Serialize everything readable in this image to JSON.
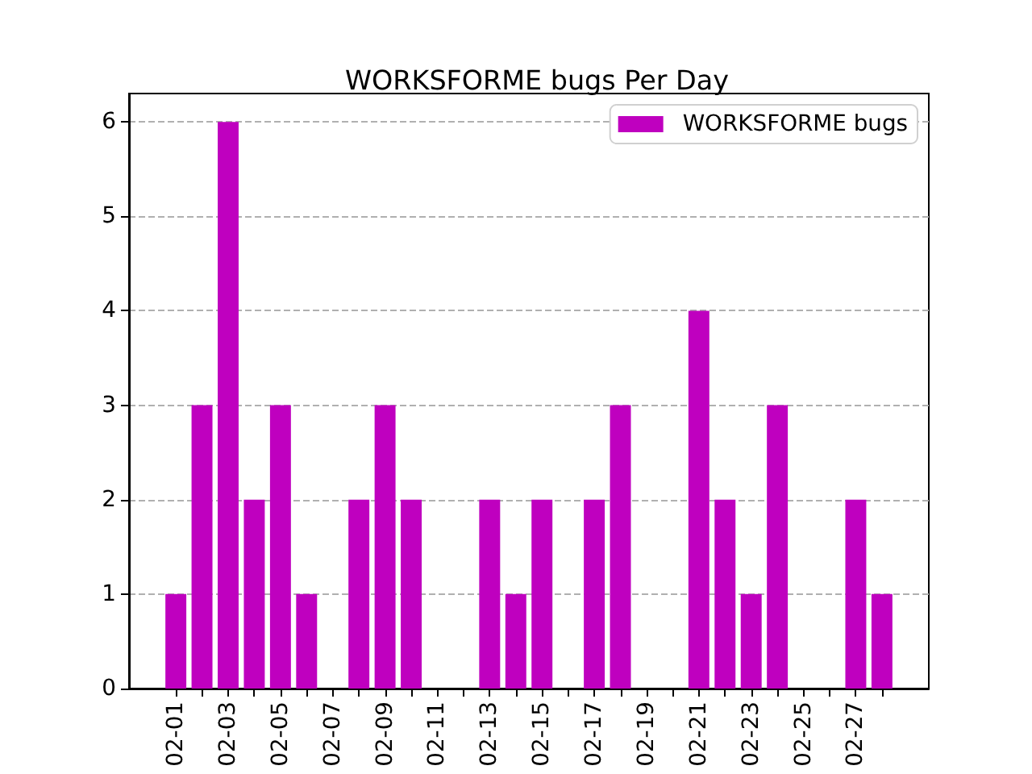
{
  "chart_data": {
    "type": "bar",
    "title": "WORKSFORME bugs Per Day",
    "x": [
      "--02-01",
      "--02-02",
      "--02-03",
      "--02-04",
      "--02-05",
      "--02-06",
      "--02-07",
      "--02-08",
      "--02-09",
      "--02-10",
      "--02-11",
      "--02-12",
      "--02-13",
      "--02-14",
      "--02-15",
      "--02-16",
      "--02-17",
      "--02-18",
      "--02-19",
      "--02-20",
      "--02-21",
      "--02-22",
      "--02-23",
      "--02-24",
      "--02-25",
      "--02-26",
      "--02-27",
      "--02-28"
    ],
    "series": [
      {
        "name": "WORKSFORME bugs",
        "color": "#bf00bf",
        "values": [
          1,
          3,
          6,
          2,
          3,
          1,
          0,
          2,
          3,
          2,
          0,
          0,
          2,
          1,
          2,
          0,
          2,
          3,
          0,
          0,
          4,
          2,
          1,
          3,
          0,
          0,
          2,
          1
        ]
      }
    ],
    "xlim": [
      "--01-30T05:00",
      "--03-01T19:00"
    ],
    "xticks": [
      {
        "value": "--02-01",
        "label": "02-01"
      },
      {
        "value": "--02-02",
        "label": null
      },
      {
        "value": "--02-03",
        "label": "02-03"
      },
      {
        "value": "--02-04",
        "label": null
      },
      {
        "value": "--02-05",
        "label": "02-05"
      },
      {
        "value": "--02-06",
        "label": null
      },
      {
        "value": "--02-07",
        "label": "02-07"
      },
      {
        "value": "--02-08",
        "label": null
      },
      {
        "value": "--02-09",
        "label": "02-09"
      },
      {
        "value": "--02-10",
        "label": null
      },
      {
        "value": "--02-11",
        "label": "02-11"
      },
      {
        "value": "--02-12",
        "label": null
      },
      {
        "value": "--02-13",
        "label": "02-13"
      },
      {
        "value": "--02-14",
        "label": null
      },
      {
        "value": "--02-15",
        "label": "02-15"
      },
      {
        "value": "--02-16",
        "label": null
      },
      {
        "value": "--02-17",
        "label": "02-17"
      },
      {
        "value": "--02-18",
        "label": null
      },
      {
        "value": "--02-19",
        "label": "02-19"
      },
      {
        "value": "--02-20",
        "label": null
      },
      {
        "value": "--02-21",
        "label": "02-21"
      },
      {
        "value": "--02-22",
        "label": null
      },
      {
        "value": "--02-23",
        "label": "02-23"
      },
      {
        "value": "--02-24",
        "label": null
      },
      {
        "value": "--02-25",
        "label": "02-25"
      },
      {
        "value": "--02-26",
        "label": null
      },
      {
        "value": "--02-27",
        "label": "02-27"
      },
      {
        "value": "--02-28",
        "label": null
      }
    ],
    "ylim": [
      0,
      6.3
    ],
    "yticks": [
      0,
      1,
      2,
      3,
      4,
      5,
      6
    ],
    "grid": "y",
    "legend": "top right"
  }
}
